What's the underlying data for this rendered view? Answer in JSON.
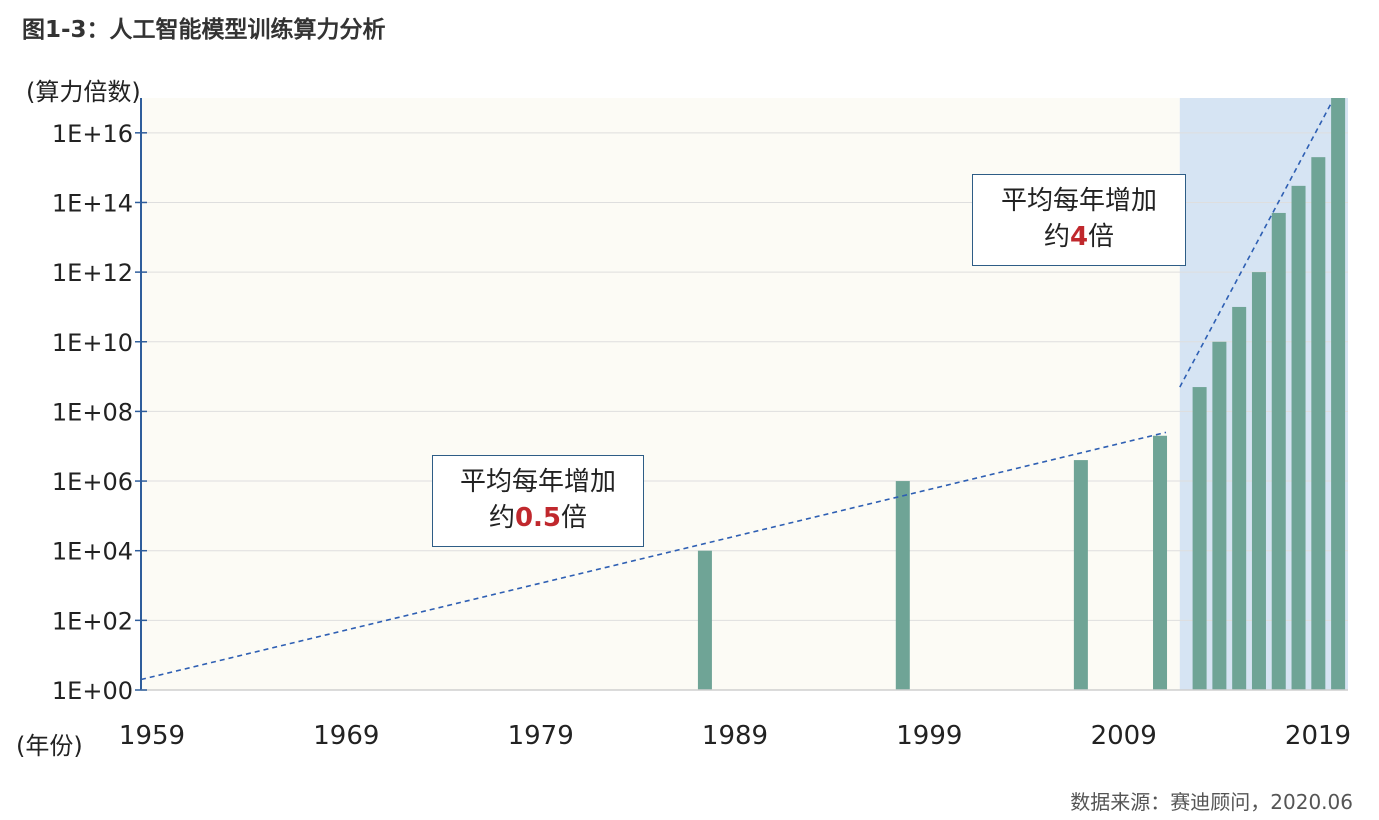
{
  "title": "图1-3：人工智能模型训练算力分析",
  "source": "数据来源：赛迪顾问，2020.06",
  "annotations": {
    "early": {
      "line1": "平均每年增加",
      "prefix": "约",
      "value": "0.5",
      "suffix": "倍"
    },
    "recent": {
      "line1": "平均每年增加",
      "prefix": "约",
      "value": "4",
      "suffix": "倍"
    }
  },
  "colors": {
    "bar": "#6fa496",
    "plot_bg": "#fcfbf5",
    "highlight_bg": "#d6e4f3",
    "axis": "#2e5d9b",
    "trend": "#2e5fb3",
    "accent": "#c0282d"
  },
  "chart_data": {
    "type": "bar",
    "title": "图1-3：人工智能模型训练算力分析",
    "ylabel": "(算力倍数)",
    "xlabel": "(年份)",
    "y_scale": "log10",
    "ylim": [
      1,
      1e+17
    ],
    "y_ticks": [
      {
        "value": 1,
        "label": "1E+00"
      },
      {
        "value": 100,
        "label": "1E+02"
      },
      {
        "value": 10000,
        "label": "1E+04"
      },
      {
        "value": 1000000,
        "label": "1E+06"
      },
      {
        "value": 100000000,
        "label": "1E+08"
      },
      {
        "value": 10000000000,
        "label": "1E+10"
      },
      {
        "value": 1000000000000,
        "label": "1E+12"
      },
      {
        "value": 100000000000000,
        "label": "1E+14"
      },
      {
        "value": 10000000000000000,
        "label": "1E+16"
      }
    ],
    "xlim": [
      1959,
      2020
    ],
    "x_ticks": [
      "1959",
      "1969",
      "1979",
      "1989",
      "1999",
      "2009",
      "2019"
    ],
    "highlight_range": [
      2011.5,
      2020
    ],
    "points": [
      {
        "year": 1987.5,
        "value": 10000
      },
      {
        "year": 1997.5,
        "value": 1000000
      },
      {
        "year": 2006.5,
        "value": 4000000
      },
      {
        "year": 2010.5,
        "value": 20000000
      },
      {
        "year": 2012.5,
        "value": 500000000
      },
      {
        "year": 2013.5,
        "value": 10000000000
      },
      {
        "year": 2014.5,
        "value": 100000000000
      },
      {
        "year": 2015.5,
        "value": 1000000000000
      },
      {
        "year": 2016.5,
        "value": 50000000000000
      },
      {
        "year": 2017.5,
        "value": 300000000000000
      },
      {
        "year": 2018.5,
        "value": 2000000000000000
      },
      {
        "year": 2019.5,
        "value": 100000000000000000
      }
    ],
    "trend_lines": [
      {
        "from": {
          "year": 1959,
          "value": 2
        },
        "to": {
          "year": 2010.8,
          "value": 25000000
        }
      },
      {
        "from": {
          "year": 2011.5,
          "value": 500000000
        },
        "to": {
          "year": 2019.2,
          "value": 80000000000000000
        }
      }
    ]
  }
}
